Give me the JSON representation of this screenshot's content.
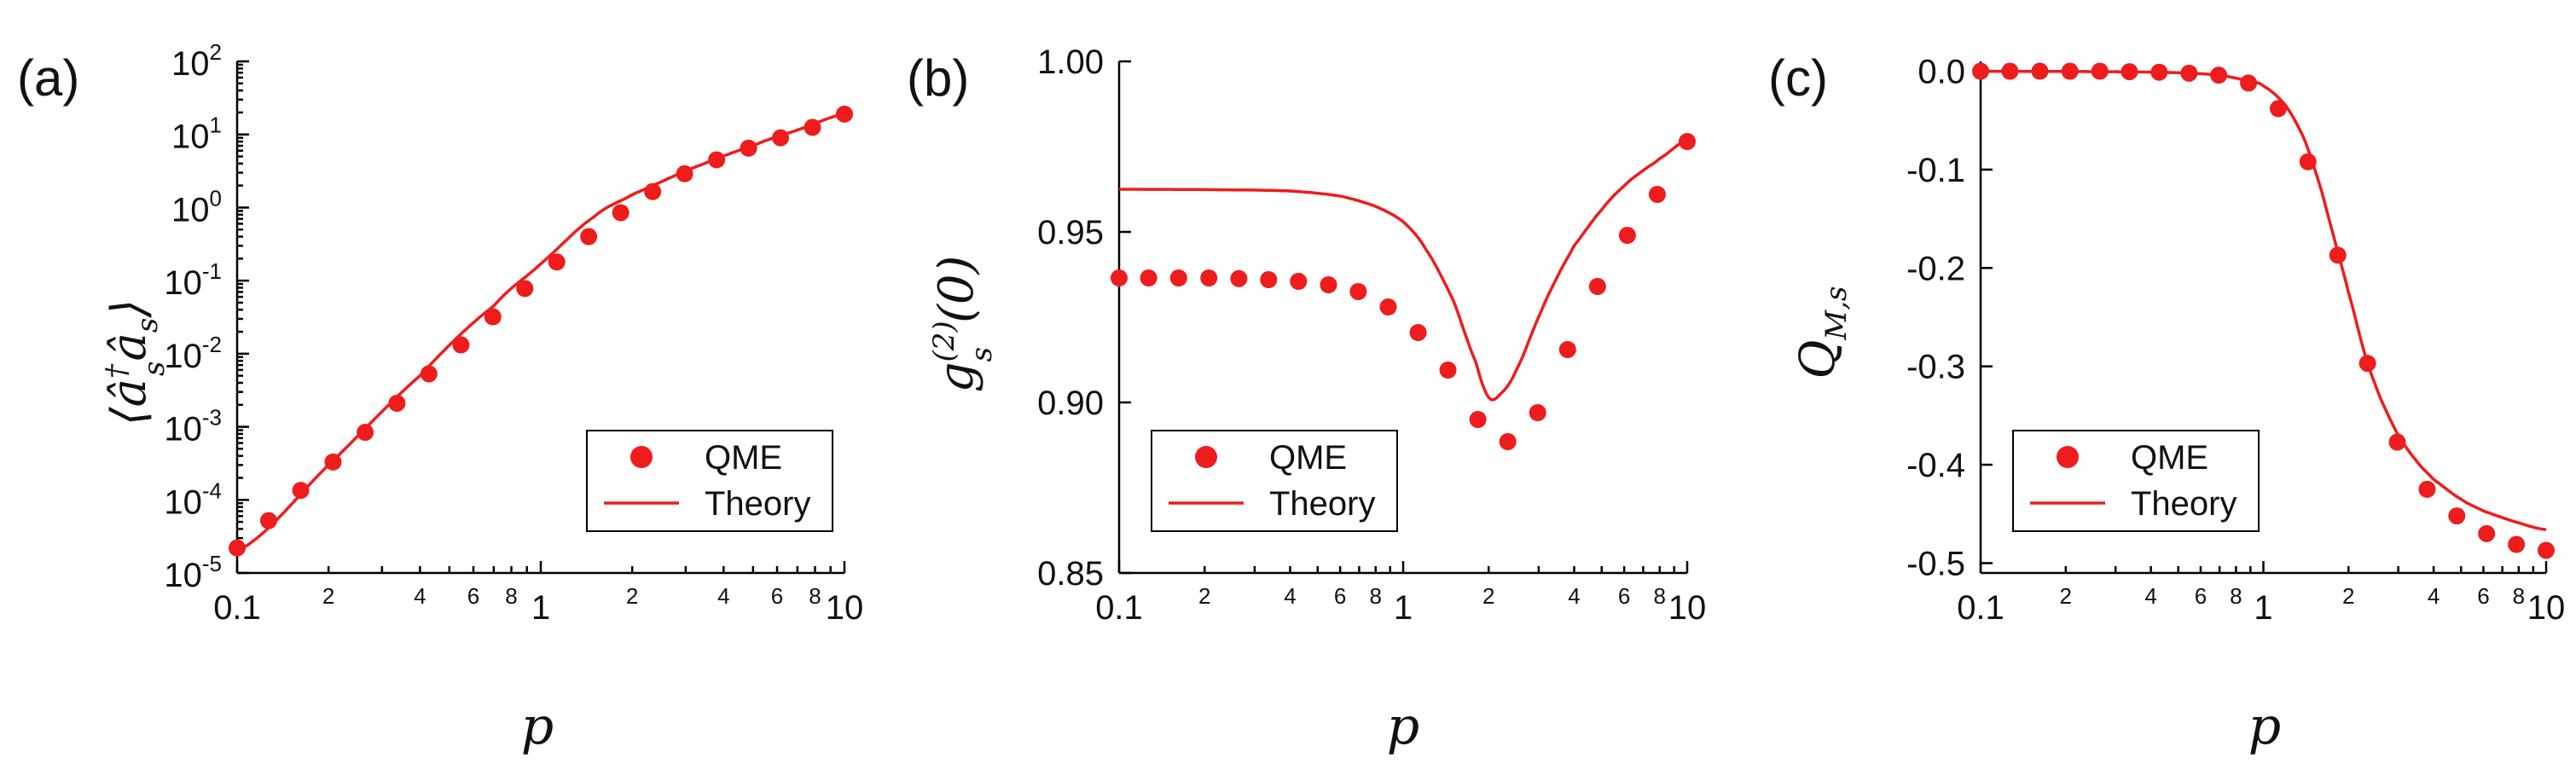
{
  "colors": {
    "series": "#ee1c1c",
    "axis": "#000000"
  },
  "x_axis_label": "p",
  "legend": {
    "points_label": "QME",
    "line_label": "Theory"
  },
  "chart_data": [
    {
      "panel": "(a)",
      "type": "line",
      "ylabel": "⟨â_s† â_s⟩",
      "ylabel_parts": {
        "main": "⟨â",
        "sup": "†",
        "sub": "s",
        "mid": "â",
        "sub2": "s",
        "close": "⟩"
      },
      "xlabel": "p",
      "xscale": "log",
      "yscale": "log",
      "xlim": [
        0.1,
        10
      ],
      "ylim": [
        1e-05,
        100
      ],
      "x_major_ticks": [
        {
          "v": 0.1,
          "label": "0.1"
        },
        {
          "v": 1,
          "label": "1"
        },
        {
          "v": 10,
          "label": "10"
        }
      ],
      "x_minor_ticks": [
        {
          "v": 2,
          "label": "2"
        },
        {
          "v": 4,
          "label": "4"
        },
        {
          "v": 6,
          "label": "6"
        },
        {
          "v": 8,
          "label": "8"
        }
      ],
      "y_ticks": [
        {
          "v": 1e-05,
          "base": "10",
          "exp": "-5"
        },
        {
          "v": 0.0001,
          "base": "10",
          "exp": "-4"
        },
        {
          "v": 0.001,
          "base": "10",
          "exp": "-3"
        },
        {
          "v": 0.01,
          "base": "10",
          "exp": "-2"
        },
        {
          "v": 0.1,
          "base": "10",
          "exp": "-1"
        },
        {
          "v": 1,
          "base": "10",
          "exp": "0"
        },
        {
          "v": 10,
          "base": "10",
          "exp": "1"
        },
        {
          "v": 100,
          "base": "10",
          "exp": "2"
        }
      ],
      "series": [
        {
          "name": "QME",
          "kind": "points",
          "x": [
            0.1,
            0.127,
            0.162,
            0.207,
            0.264,
            0.336,
            0.428,
            0.546,
            0.695,
            0.886,
            1.129,
            1.438,
            1.833,
            2.336,
            2.976,
            3.793,
            4.833,
            6.158,
            7.848,
            10.0
          ],
          "y": [
            2.2e-05,
            5.2e-05,
            0.000135,
            0.00033,
            0.00084,
            0.0021,
            0.0053,
            0.0132,
            0.032,
            0.078,
            0.18,
            0.4,
            0.85,
            1.65,
            2.9,
            4.5,
            6.5,
            9.0,
            12.5,
            19.0
          ]
        },
        {
          "name": "Theory",
          "kind": "line",
          "x": [
            0.1,
            0.2,
            0.4,
            0.7,
            1.0,
            1.5,
            2.0,
            3.0,
            5.0,
            7.0,
            10.0
          ],
          "y": [
            2e-05,
            0.0003,
            0.005,
            0.045,
            0.17,
            0.75,
            1.5,
            3.2,
            7.0,
            11.5,
            19.0
          ]
        }
      ]
    },
    {
      "panel": "(b)",
      "type": "line",
      "ylabel": "g_s^(2)(0)",
      "ylabel_parts": {
        "main": "g",
        "sup": "(2)",
        "sub": "s",
        "rest": "(0)"
      },
      "xlabel": "p",
      "xscale": "log",
      "yscale": "linear",
      "xlim": [
        0.1,
        10
      ],
      "ylim": [
        0.85,
        1.0
      ],
      "x_major_ticks": [
        {
          "v": 0.1,
          "label": "0.1"
        },
        {
          "v": 1,
          "label": "1"
        },
        {
          "v": 10,
          "label": "10"
        }
      ],
      "x_minor_ticks": [
        {
          "v": 2,
          "label": "2"
        },
        {
          "v": 4,
          "label": "4"
        },
        {
          "v": 6,
          "label": "6"
        },
        {
          "v": 8,
          "label": "8"
        }
      ],
      "y_ticks": [
        {
          "v": 0.85,
          "label": "0.85"
        },
        {
          "v": 0.9,
          "label": "0.90"
        },
        {
          "v": 0.95,
          "label": "0.95"
        },
        {
          "v": 1.0,
          "label": "1.00"
        }
      ],
      "series": [
        {
          "name": "QME",
          "kind": "points",
          "x": [
            0.1,
            0.127,
            0.162,
            0.207,
            0.264,
            0.336,
            0.428,
            0.546,
            0.695,
            0.886,
            1.129,
            1.438,
            1.833,
            2.336,
            2.976,
            3.793,
            4.833,
            6.158,
            7.848,
            10.0
          ],
          "y": [
            0.9365,
            0.9365,
            0.9365,
            0.9365,
            0.9363,
            0.936,
            0.9355,
            0.9345,
            0.9325,
            0.928,
            0.9205,
            0.9095,
            0.895,
            0.8885,
            0.897,
            0.9155,
            0.934,
            0.949,
            0.961,
            0.9765
          ]
        },
        {
          "name": "Theory",
          "kind": "line",
          "x": [
            0.1,
            0.2,
            0.4,
            0.6,
            0.8,
            1.0,
            1.2,
            1.5,
            1.8,
            2.0,
            2.2,
            2.5,
            3.0,
            3.5,
            4.0,
            5.0,
            6.0,
            7.0,
            8.0,
            10.0
          ],
          "y": [
            0.9625,
            0.9624,
            0.962,
            0.9605,
            0.9575,
            0.953,
            0.945,
            0.93,
            0.912,
            0.9015,
            0.9025,
            0.9095,
            0.925,
            0.937,
            0.946,
            0.9565,
            0.9635,
            0.968,
            0.9715,
            0.977
          ]
        }
      ]
    },
    {
      "panel": "(c)",
      "type": "line",
      "ylabel": "Q_M,s",
      "ylabel_parts": {
        "main": "Q",
        "sub": "M,s"
      },
      "xlabel": "p",
      "xscale": "log",
      "yscale": "linear",
      "xlim": [
        0.1,
        10
      ],
      "ylim": [
        -0.51,
        0.01
      ],
      "x_major_ticks": [
        {
          "v": 0.1,
          "label": "0.1"
        },
        {
          "v": 1,
          "label": "1"
        },
        {
          "v": 10,
          "label": "10"
        }
      ],
      "x_minor_ticks": [
        {
          "v": 2,
          "label": "2"
        },
        {
          "v": 4,
          "label": "4"
        },
        {
          "v": 6,
          "label": "6"
        },
        {
          "v": 8,
          "label": "8"
        }
      ],
      "y_ticks": [
        {
          "v": 0.0,
          "label": "0.0"
        },
        {
          "v": -0.1,
          "label": "-0.1"
        },
        {
          "v": -0.2,
          "label": "-0.2"
        },
        {
          "v": -0.3,
          "label": "-0.3"
        },
        {
          "v": -0.4,
          "label": "-0.4"
        },
        {
          "v": -0.5,
          "label": "-0.5"
        }
      ],
      "series": [
        {
          "name": "QME",
          "kind": "points",
          "x": [
            0.1,
            0.127,
            0.162,
            0.207,
            0.264,
            0.336,
            0.428,
            0.546,
            0.695,
            0.886,
            1.129,
            1.438,
            1.833,
            2.336,
            2.976,
            3.793,
            4.833,
            6.158,
            7.848,
            10.0
          ],
          "y": [
            0.0,
            0.0,
            0.0,
            0.0,
            0.0,
            -0.0005,
            -0.001,
            -0.002,
            -0.004,
            -0.012,
            -0.038,
            -0.092,
            -0.187,
            -0.297,
            -0.377,
            -0.425,
            -0.452,
            -0.47,
            -0.481,
            -0.487
          ]
        },
        {
          "name": "Theory",
          "kind": "line",
          "x": [
            0.1,
            0.3,
            0.5,
            0.7,
            0.9,
            1.0,
            1.2,
            1.4,
            1.6,
            1.8,
            2.0,
            2.3,
            2.6,
            3.0,
            3.5,
            4.0,
            5.0,
            6.0,
            8.0,
            10.0
          ],
          "y": [
            0.0,
            -0.0005,
            -0.0015,
            -0.004,
            -0.01,
            -0.015,
            -0.035,
            -0.07,
            -0.12,
            -0.175,
            -0.225,
            -0.29,
            -0.333,
            -0.37,
            -0.397,
            -0.415,
            -0.435,
            -0.447,
            -0.459,
            -0.466
          ]
        }
      ]
    }
  ]
}
